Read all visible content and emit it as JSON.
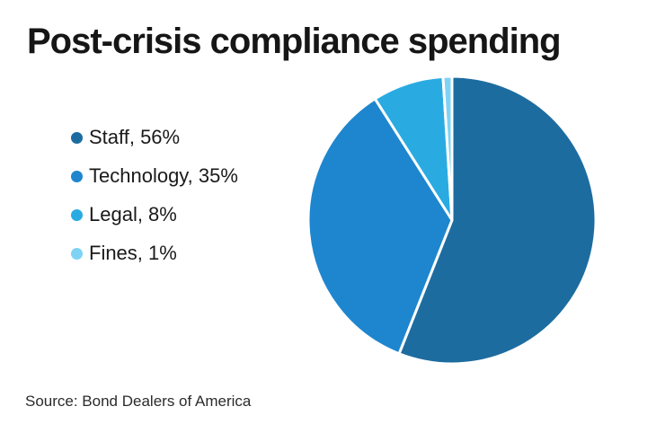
{
  "page": {
    "background": "#ffffff"
  },
  "header": {
    "title": "Post-crisis compliance spending"
  },
  "chart_data": {
    "type": "pie",
    "title": "Post-crisis compliance spending",
    "categories": [
      "Staff",
      "Technology",
      "Legal",
      "Fines"
    ],
    "values": [
      56,
      35,
      8,
      1
    ],
    "unit": "%",
    "colors": [
      "#1D6CA0",
      "#1E86CE",
      "#29ABE2",
      "#7ED3F4"
    ],
    "start_angle_deg": 0,
    "direction": "clockwise",
    "slice_divider_color": "#ffffff",
    "legend_position": "left",
    "source": "Source: Bond Dealers of America"
  },
  "legend": {
    "items": [
      {
        "label": "Staff, 56%",
        "color": "#1D6CA0"
      },
      {
        "label": "Technology, 35%",
        "color": "#1E86CE"
      },
      {
        "label": "Legal, 8%",
        "color": "#29ABE2"
      },
      {
        "label": "Fines, 1%",
        "color": "#7ED3F4"
      }
    ]
  },
  "footer": {
    "source": "Source: Bond Dealers of America"
  }
}
